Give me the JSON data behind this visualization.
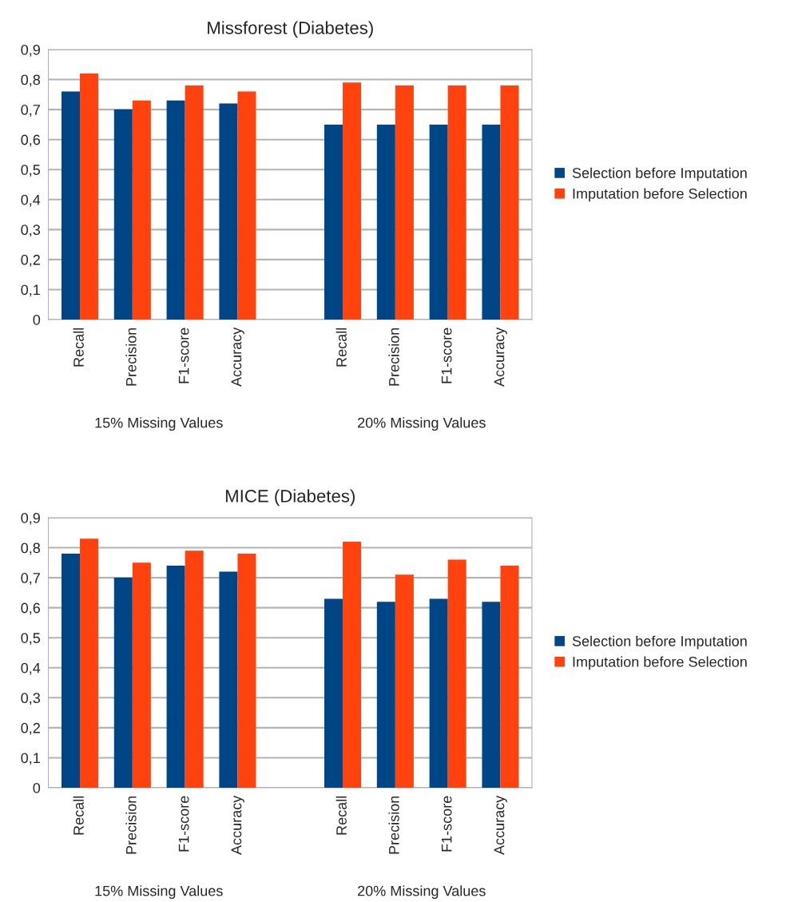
{
  "chart_data": [
    {
      "type": "bar",
      "title": "Missforest (Diabetes)",
      "categories": [
        "Recall",
        "Precision",
        "F1-score",
        "Accuracy",
        null,
        "Recall",
        "Precision",
        "F1-score",
        "Accuracy"
      ],
      "series": [
        {
          "name": "Selection before Imputation",
          "color": "#004586",
          "values": [
            0.76,
            0.7,
            0.73,
            0.72,
            null,
            0.65,
            0.65,
            0.65,
            0.65
          ]
        },
        {
          "name": "Imputation before Selection",
          "color": "#ff420e",
          "values": [
            0.82,
            0.73,
            0.78,
            0.76,
            null,
            0.79,
            0.78,
            0.78,
            0.78
          ]
        }
      ],
      "ylim": [
        0,
        0.9
      ],
      "yticks": [
        0,
        {
          "value": 0.1,
          "label": "0,1"
        },
        {
          "value": 0.2,
          "label": "0,2"
        },
        {
          "value": 0.3,
          "label": "0,3"
        },
        {
          "value": 0.4,
          "label": "0,4"
        },
        {
          "value": 0.5,
          "label": "0,5"
        },
        {
          "value": 0.6,
          "label": "0,6"
        },
        {
          "value": 0.7,
          "label": "0,7"
        },
        {
          "value": 0.8,
          "label": "0,8"
        },
        {
          "value": 0.9,
          "label": "0,9"
        }
      ],
      "grid": "y",
      "legend": "right",
      "annotations": [
        "15% Missing Values",
        "20% Missing Values"
      ]
    },
    {
      "type": "bar",
      "title": "MICE (Diabetes)",
      "categories": [
        "Recall",
        "Precision",
        "F1-score",
        "Accuracy",
        null,
        "Recall",
        "Precision",
        "F1-score",
        "Accuracy"
      ],
      "series": [
        {
          "name": "Selection before Imputation",
          "color": "#004586",
          "values": [
            0.78,
            0.7,
            0.74,
            0.72,
            null,
            0.63,
            0.62,
            0.63,
            0.62
          ]
        },
        {
          "name": "Imputation before Selection",
          "color": "#ff420e",
          "values": [
            0.83,
            0.75,
            0.79,
            0.78,
            null,
            0.82,
            0.71,
            0.76,
            0.74
          ]
        }
      ],
      "ylim": [
        0,
        0.9
      ],
      "yticks": [
        0,
        {
          "value": 0.1,
          "label": "0,1"
        },
        {
          "value": 0.2,
          "label": "0,2"
        },
        {
          "value": 0.3,
          "label": "0,3"
        },
        {
          "value": 0.4,
          "label": "0,4"
        },
        {
          "value": 0.5,
          "label": "0,5"
        },
        {
          "value": 0.6,
          "label": "0,6"
        },
        {
          "value": 0.7,
          "label": "0,7"
        },
        {
          "value": 0.8,
          "label": "0,8"
        },
        {
          "value": 0.9,
          "label": "0,9"
        }
      ],
      "grid": "y",
      "legend": "right",
      "annotations": [
        "15% Missing Values",
        "20% Missing Values"
      ]
    }
  ]
}
